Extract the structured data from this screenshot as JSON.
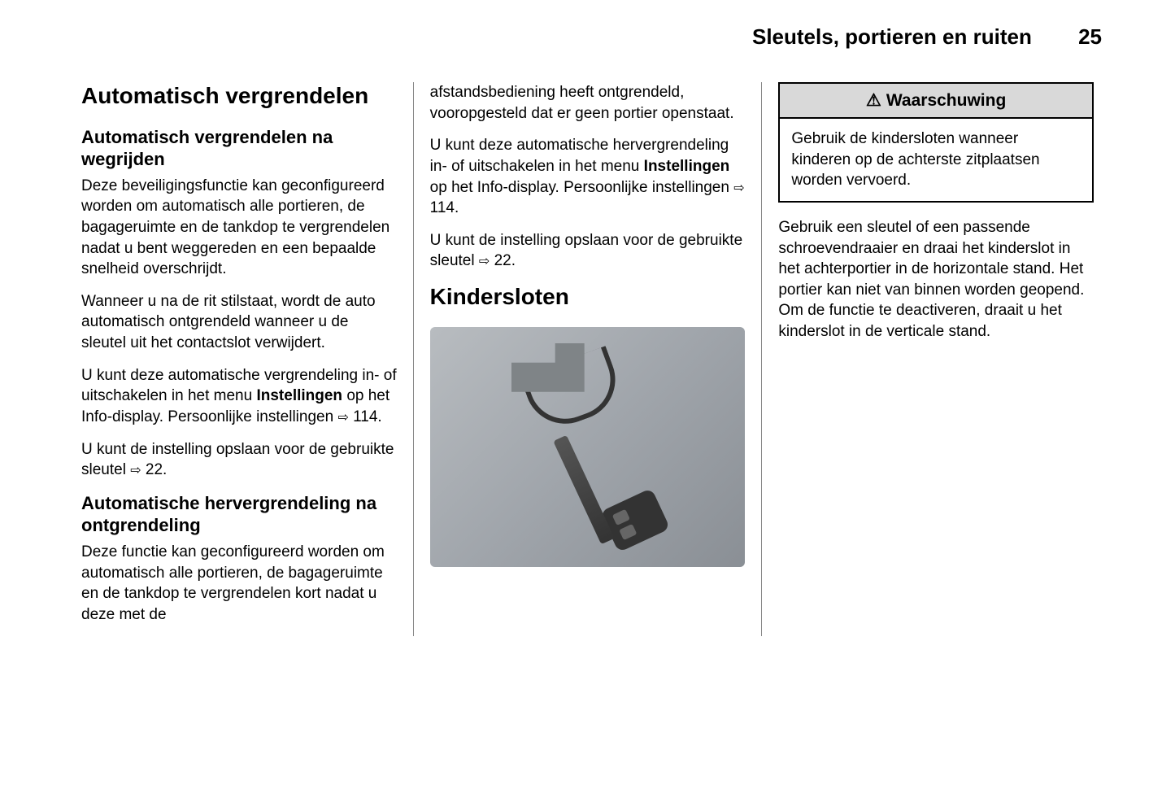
{
  "header": {
    "title": "Sleutels, portieren en ruiten",
    "page_number": "25"
  },
  "col1": {
    "h1": "Automatisch vergrendelen",
    "section1": {
      "h2": "Automatisch vergrendelen na wegrijden",
      "p1": "Deze beveiligingsfunctie kan gecon­figureerd worden om automatisch alle portieren, de bagageruimte en de tankdop te vergrendelen nadat u bent weggereden en een bepaalde snel­heid overschrijdt.",
      "p2": "Wanneer u na de rit stilstaat, wordt de auto automatisch ontgrendeld wan­neer u de sleutel uit het contactslot verwijdert.",
      "p3_pre": "U kunt deze automatische vergren­deling in- of uitschakelen in het menu ",
      "p3_bold": "Instellingen",
      "p3_post": " op het Info-display. Per­soonlijke instellingen ",
      "p3_ref": "114.",
      "p4_pre": "U kunt de instelling opslaan voor de gebruikte sleutel ",
      "p4_ref": "22."
    },
    "section2": {
      "h2": "Automatische hervergrendeling na ontgrendeling",
      "p1": "Deze functie kan geconfigureerd wor­den om automatisch alle portieren, de bagageruimte en de tankdop te ver­grendelen kort nadat u deze met de"
    }
  },
  "col2": {
    "p1": "afstandsbediening heeft ontgrendeld, vooropgesteld dat er geen portier openstaat.",
    "p2_pre": "U kunt deze automatische herver­grendeling in- of uitschakelen in het menu ",
    "p2_bold": "Instellingen",
    "p2_post": " op het Info-display. Persoonlijke instellingen ",
    "p2_ref": "114.",
    "p3_pre": "U kunt de instelling opslaan voor de gebruikte sleutel ",
    "p3_ref": "22.",
    "h1": "Kindersloten"
  },
  "col3": {
    "warning": {
      "icon": "⚠",
      "label": "Waarschuwing",
      "body": "Gebruik de kindersloten wanneer kinderen op de achterste zitplaat­sen worden vervoerd."
    },
    "p1": "Gebruik een sleutel of een passende schroevendraaier en draai het kinder­slot in het achterportier in de horizon­tale stand. Het portier kan niet van binnen worden geopend. Om de func­tie te deactiveren, draait u het kinder­slot in de verticale stand."
  },
  "arrow_glyph": "⇨"
}
